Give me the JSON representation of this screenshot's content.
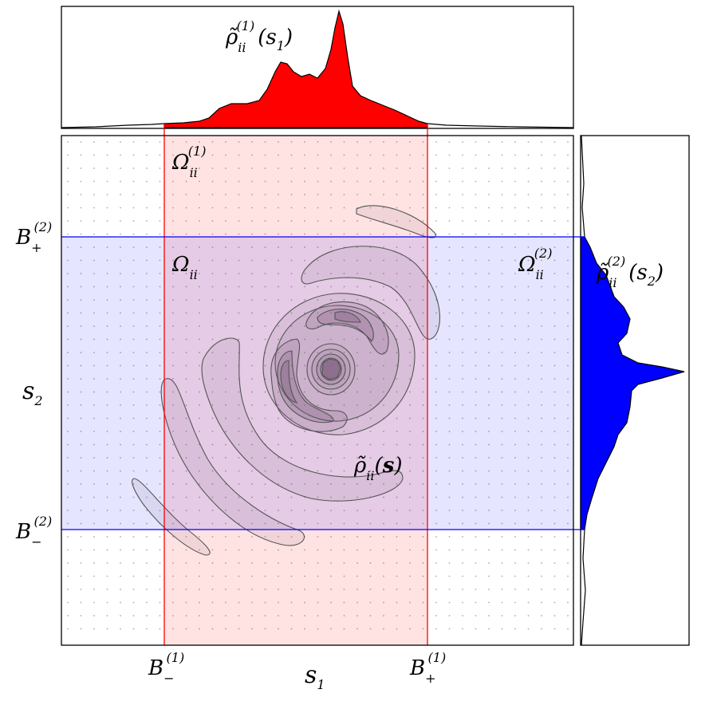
{
  "top_marginal": {
    "rho": "ρ̃",
    "sub": "ii",
    "sup": "(1)",
    "arg": "(s",
    "arg_sub": "1",
    "close": ")",
    "color": "#ff0000"
  },
  "right_marginal": {
    "rho": "ρ̃",
    "sub": "ii",
    "sup": "(2)",
    "arg": "(s",
    "arg_sub": "2",
    "close": ")",
    "color": "#0000ff"
  },
  "center": {
    "omega1": {
      "main": "Ω",
      "sub": "ii",
      "sup": "(1)"
    },
    "omega": {
      "main": "Ω",
      "sub": "ii"
    },
    "omega2": {
      "main": "Ω",
      "sub": "ii",
      "sup": "(2)"
    },
    "density": {
      "rho": "ρ̃",
      "sub": "ii",
      "arg_open": "(",
      "arg": "s",
      "arg_close": ")"
    }
  },
  "bounds": {
    "bplus2": {
      "main": "B",
      "sub": "+",
      "sup": "(2)"
    },
    "bminus2": {
      "main": "B",
      "sub": "−",
      "sup": "(2)"
    },
    "bminus1": {
      "main": "B",
      "sub": "−",
      "sup": "(1)"
    },
    "bplus1": {
      "main": "B",
      "sub": "+",
      "sup": "(1)"
    }
  },
  "axes": {
    "xlabel": {
      "main": "s",
      "sub": "1"
    },
    "ylabel": {
      "main": "s",
      "sub": "2"
    }
  },
  "colors": {
    "red_band": "#ff0000",
    "blue_band": "#0000ff",
    "contour": "#555555",
    "grid_dots": "#aaaaaa"
  }
}
